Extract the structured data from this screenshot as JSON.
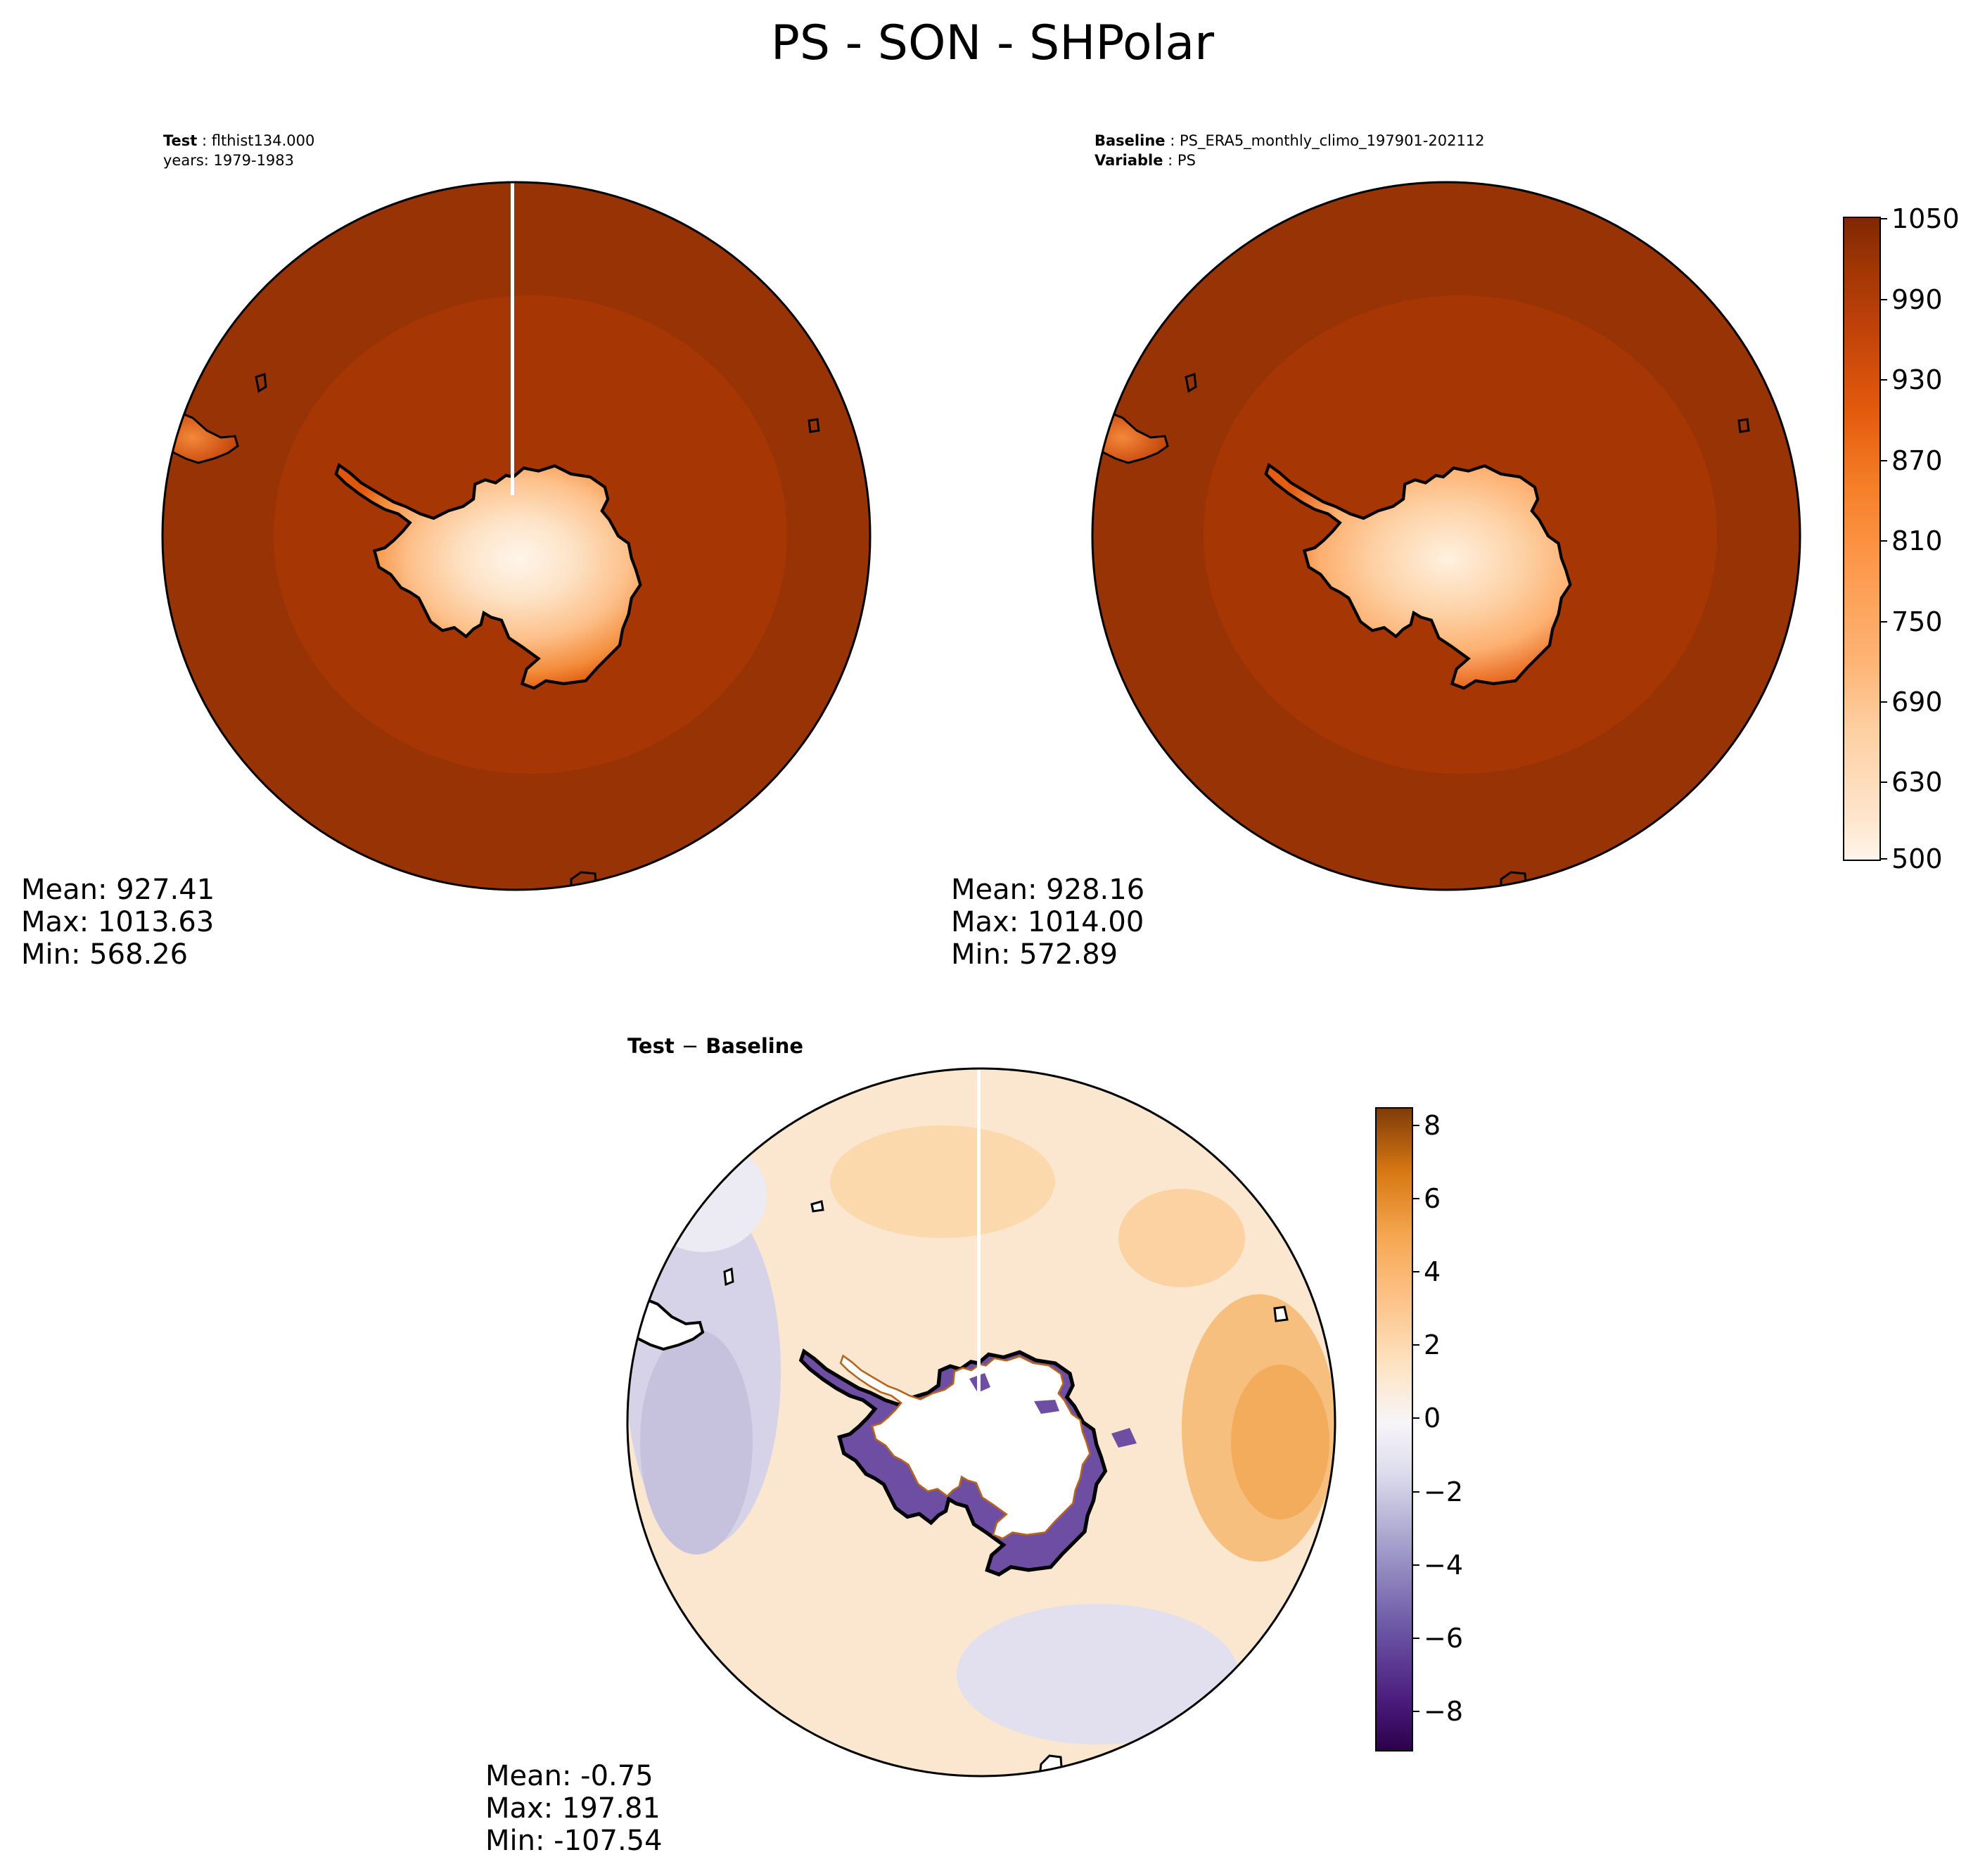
{
  "figure": {
    "title": "PS - SON - SHPolar"
  },
  "panels": {
    "test": {
      "header_key": "Test",
      "header_value": "flthist134.000",
      "header_line2": "years: 1979-1983",
      "stats": {
        "mean": "Mean: 927.41",
        "max": "Max: 1013.63",
        "min": "Min: 568.26"
      }
    },
    "baseline": {
      "header_key": "Baseline",
      "header_value": "PS_ERA5_monthly_climo_197901-202112",
      "header_key2": "Variable",
      "header_value2": "PS",
      "stats": {
        "mean": "Mean: 928.16",
        "max": "Max: 1014.00",
        "min": "Min: 572.89"
      }
    },
    "diff": {
      "header_left": "Test",
      "header_op": "−",
      "header_right": "Baseline",
      "stats": {
        "mean": "Mean: -0.75",
        "max": "Max: 197.81",
        "min": "Min: -107.54"
      }
    }
  },
  "colorbars": {
    "ps": {
      "ticks": [
        "1050",
        "990",
        "930",
        "870",
        "810",
        "750",
        "690",
        "630",
        "500"
      ],
      "colors_low_to_high": [
        "#fff5eb",
        "#fee6ce",
        "#fdd0a2",
        "#fdc08a",
        "#fdae6b",
        "#fd9d55",
        "#fd8d3c",
        "#f87d2a",
        "#f16913",
        "#e2540a",
        "#d94801",
        "#c0420a",
        "#a63603",
        "#983306",
        "#8c2d04",
        "#7f2704"
      ]
    },
    "diff": {
      "ticks": [
        "8",
        "6",
        "4",
        "2",
        "0",
        "−2",
        "−4",
        "−6",
        "−8"
      ],
      "range": [
        -9,
        8.5
      ],
      "colors_low_to_high": [
        "#2d004b",
        "#4b1d7f",
        "#5e3c99",
        "#7667ad",
        "#8f87bd",
        "#a9a4cf",
        "#c6c3de",
        "#dfdeee",
        "#f4f3f7",
        "#fdf0e0",
        "#fee0b6",
        "#fdc98a",
        "#fdb863",
        "#f39a3a",
        "#e08214",
        "#c0640c",
        "#a04d07",
        "#7f3b08"
      ]
    }
  },
  "map_colors": {
    "ocean_outer": "#983306",
    "ocean_inner": "#a63603",
    "coast": "#000000",
    "diff_ocean": "#fbe6cf",
    "diff_ice": "#ffffff",
    "diff_neg": "#d2cfe6",
    "diff_pos": "#f5b26a",
    "diff_deep_neg": "#5b2c91"
  }
}
